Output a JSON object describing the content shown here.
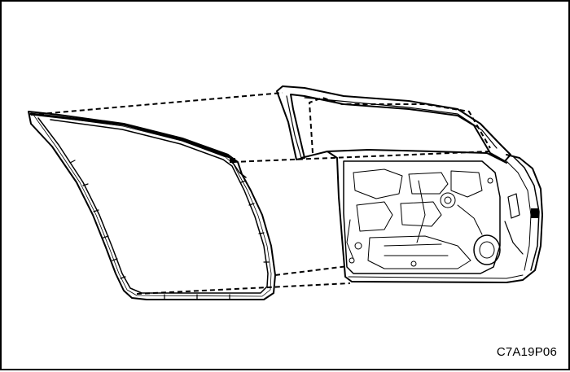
{
  "figure": {
    "code": "C7A19P06",
    "subject": "door-weatherstrip-exploded-view"
  },
  "colors": {
    "line": "#000000",
    "background": "#ffffff"
  }
}
